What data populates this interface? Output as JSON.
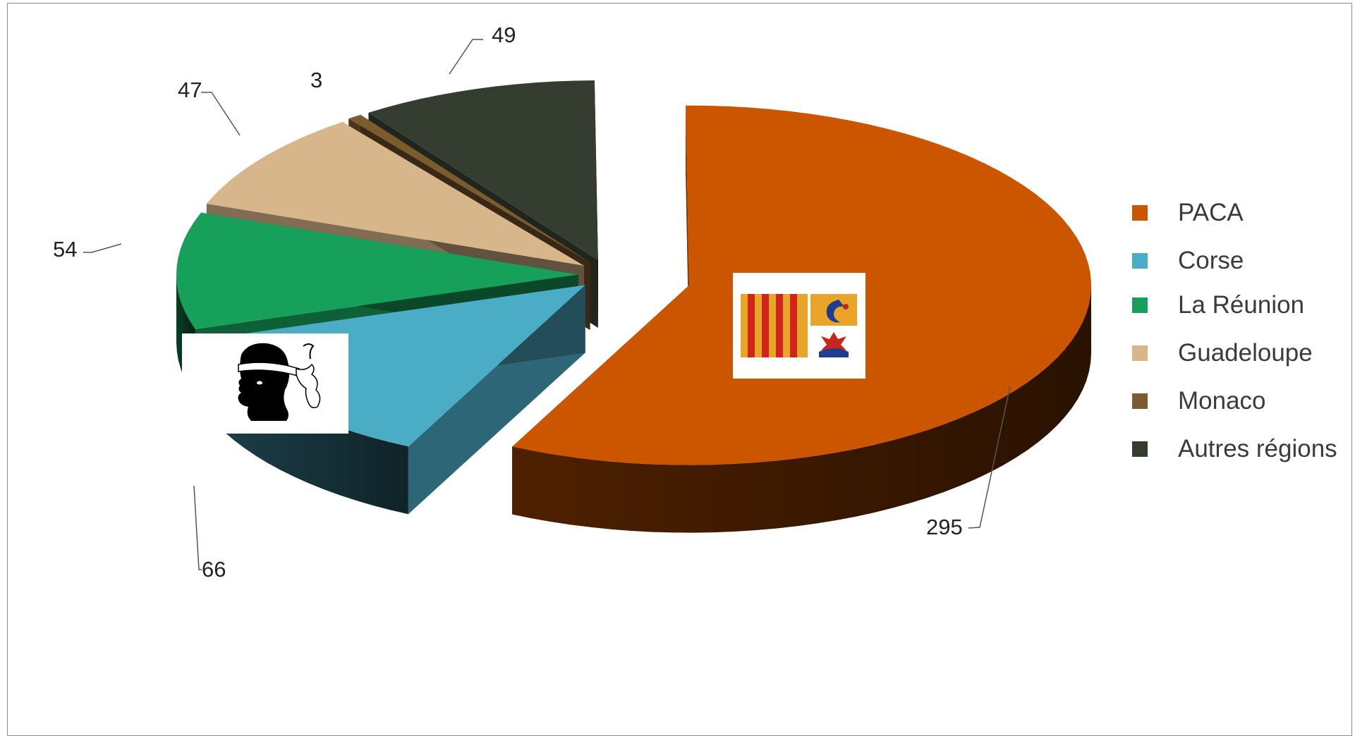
{
  "chart_data": {
    "type": "pie",
    "categories": [
      "PACA",
      "Corse",
      "La Réunion",
      "Guadeloupe",
      "Monaco",
      "Autres régions"
    ],
    "values": [
      295,
      66,
      54,
      47,
      3,
      49
    ],
    "data_labels": [
      "295",
      "66",
      "54",
      "47",
      "3",
      "49"
    ],
    "colors": [
      "#CC5500",
      "#4BACC6",
      "#17A05A",
      "#D6B68A",
      "#7A5C2E",
      "#353D31"
    ],
    "exploded": true,
    "three_d": true,
    "legend_position": "right"
  },
  "legend": {
    "items": [
      {
        "label": "PACA",
        "color": "#CC5500"
      },
      {
        "label": "Corse",
        "color": "#4BACC6"
      },
      {
        "label": "La Réunion",
        "color": "#17A05A"
      },
      {
        "label": "Guadeloupe",
        "color": "#D6B68A"
      },
      {
        "label": "Monaco",
        "color": "#7A5C2E"
      },
      {
        "label": "Autres régions",
        "color": "#353D31"
      }
    ]
  },
  "images": {
    "paca_flag": "paca-flag-icon",
    "corsica_flag": "corsica-moor-head-flag-icon"
  }
}
